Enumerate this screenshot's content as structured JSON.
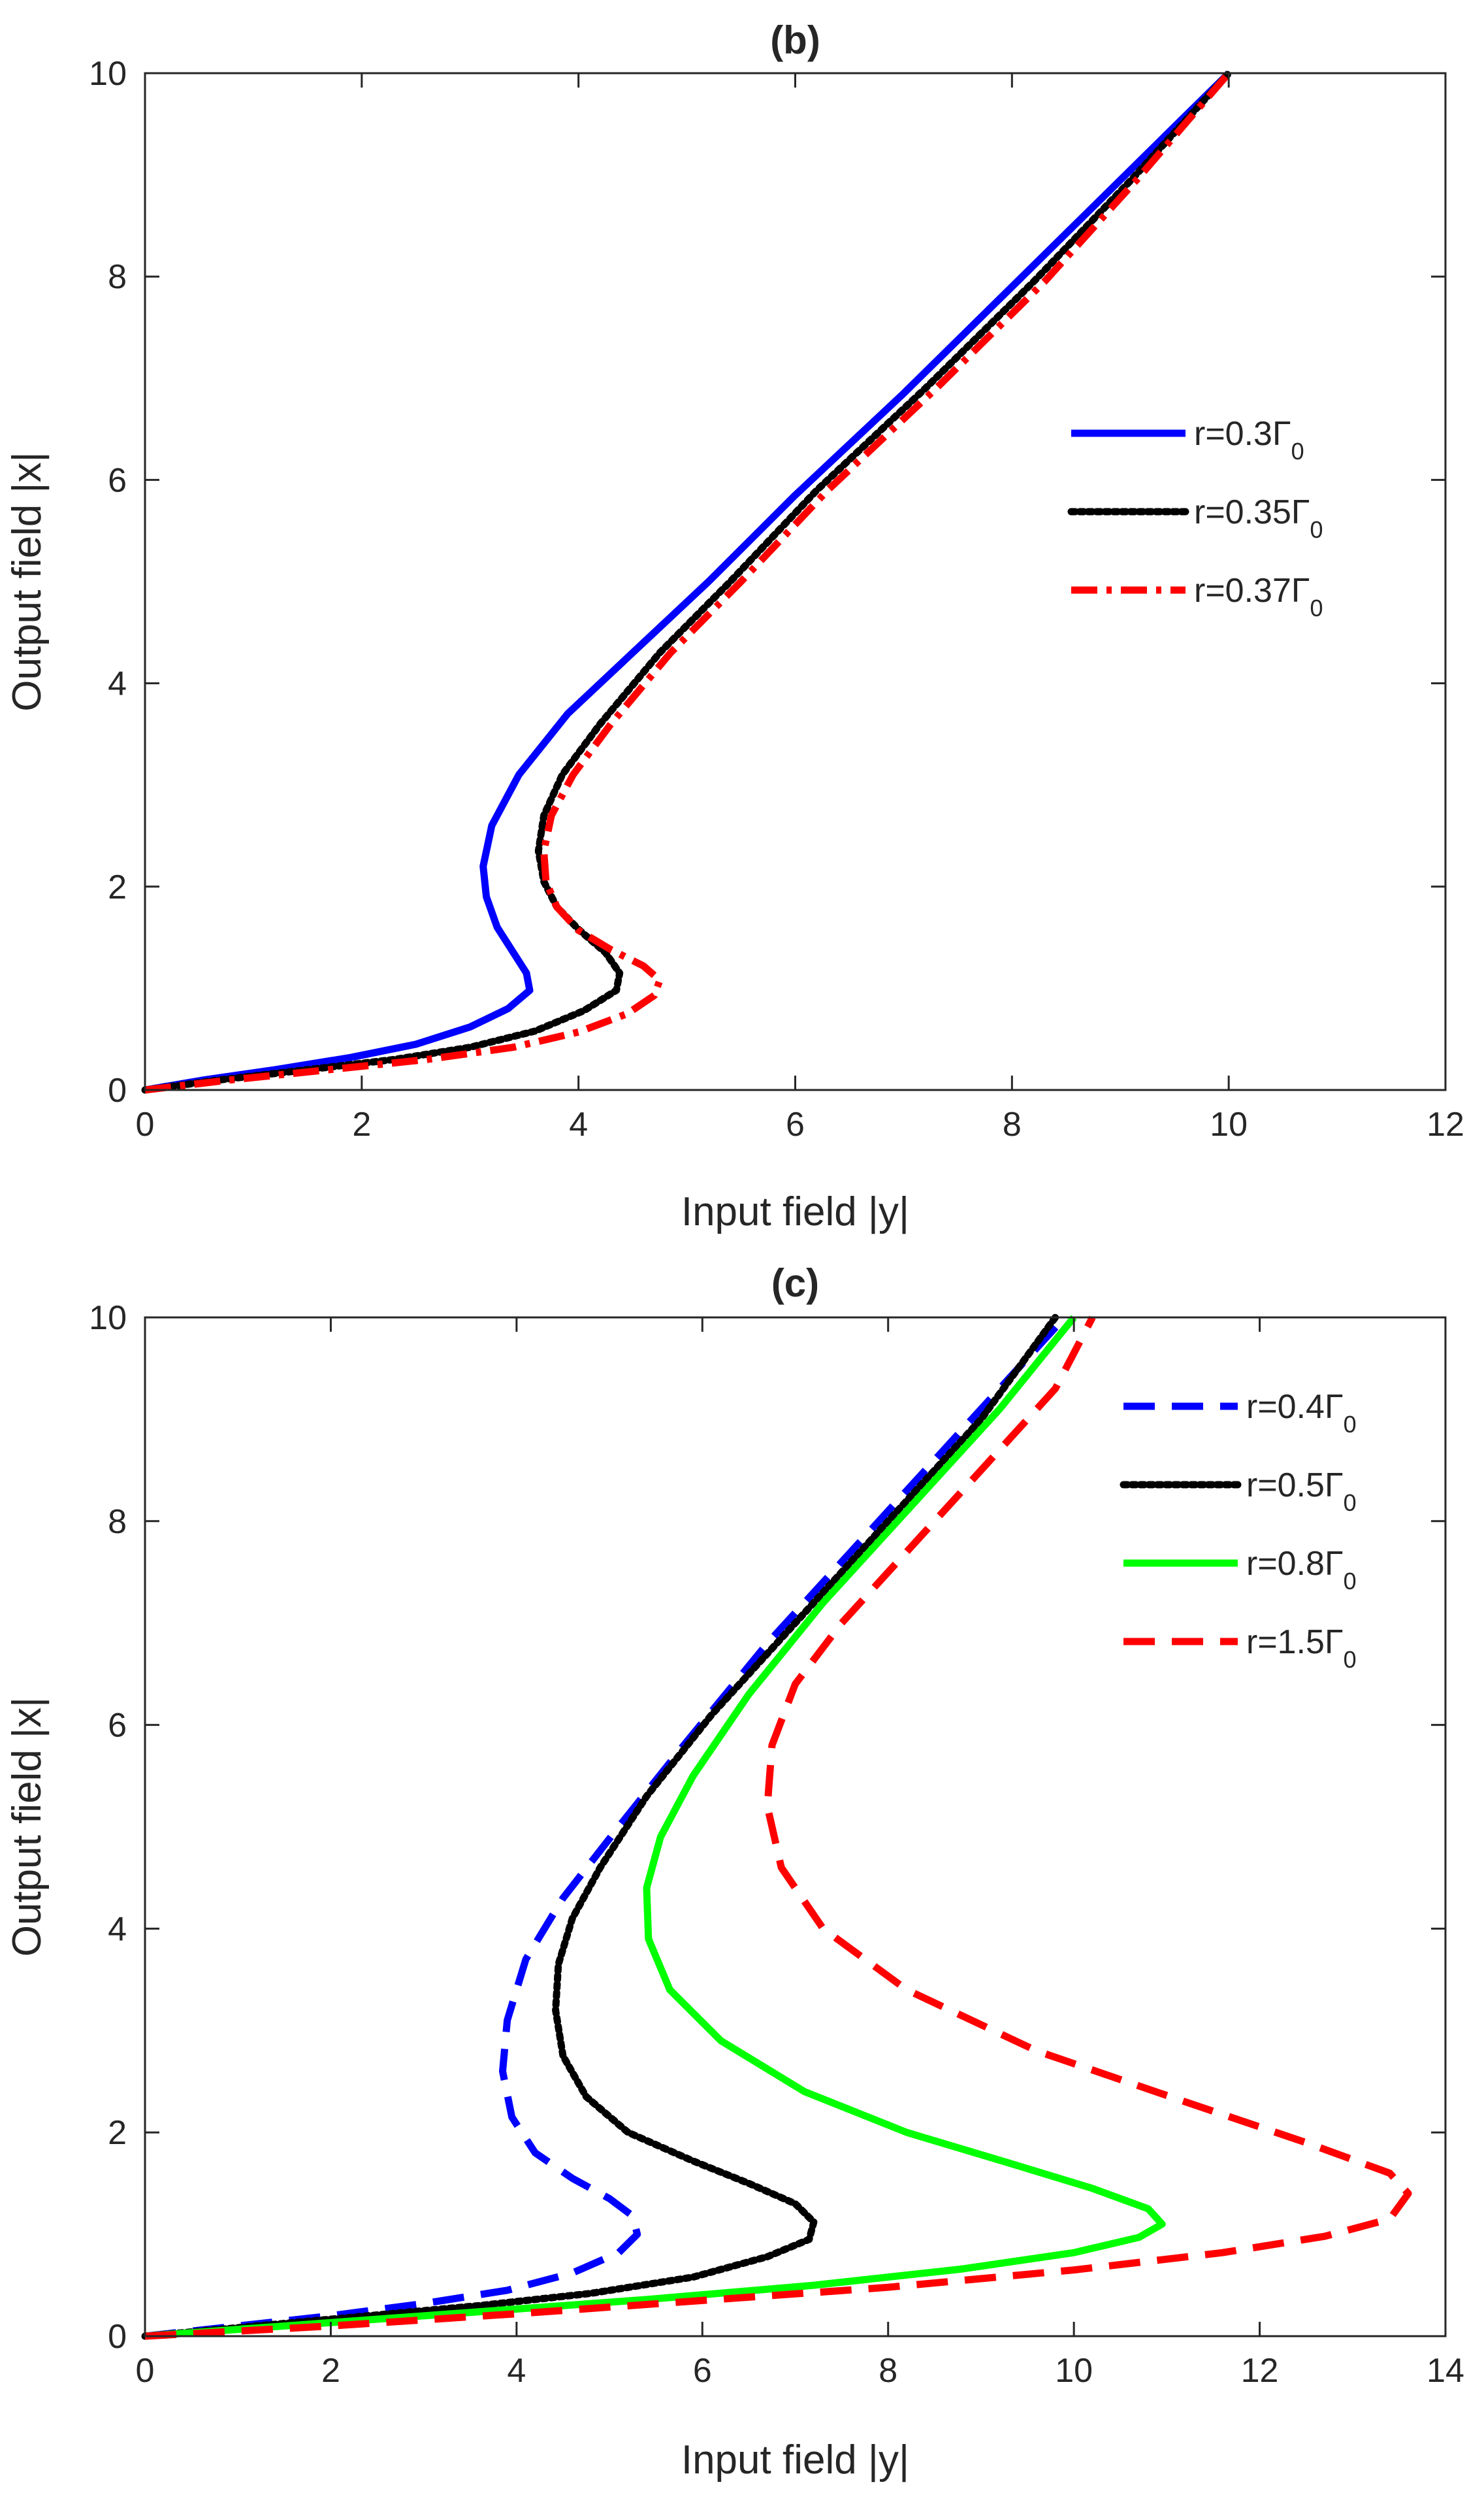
{
  "chart_data": [
    {
      "type": "line",
      "title": "(b)",
      "xlabel": "Input field |y|",
      "ylabel": "Output field |x|",
      "xlim": [
        0,
        12
      ],
      "ylim": [
        0,
        10
      ],
      "xticks": [
        0,
        2,
        4,
        6,
        8,
        10,
        12
      ],
      "yticks": [
        0,
        2,
        4,
        6,
        8,
        10
      ],
      "legend_position": "right",
      "series": [
        {
          "name": "r=0.3Γ0",
          "label_main": "r=0.3Γ",
          "label_sub": "0",
          "color": "#0000ff",
          "style": "solid",
          "x": [
            0,
            0.55,
            1.2,
            1.9,
            2.5,
            3.0,
            3.35,
            3.55,
            3.52,
            3.4,
            3.25,
            3.15,
            3.12,
            3.2,
            3.45,
            3.9,
            4.5,
            5.2,
            6.0,
            7.0,
            8.0,
            9.0,
            10.0
          ],
          "y": [
            0,
            0.1,
            0.2,
            0.32,
            0.45,
            0.62,
            0.8,
            0.98,
            1.15,
            1.35,
            1.6,
            1.9,
            2.2,
            2.6,
            3.1,
            3.7,
            4.3,
            5.0,
            5.85,
            6.85,
            7.9,
            8.95,
            10.0
          ]
        },
        {
          "name": "r=0.35Γ0",
          "label_main": "r=0.35Γ",
          "label_sub": "0",
          "color": "#000000",
          "style": "dotted",
          "x": [
            0,
            0.7,
            1.5,
            2.3,
            3.0,
            3.6,
            4.05,
            4.35,
            4.38,
            4.25,
            4.0,
            3.8,
            3.68,
            3.63,
            3.68,
            3.85,
            4.2,
            4.75,
            5.4,
            6.2,
            7.2,
            8.2,
            9.1,
            10.0
          ],
          "y": [
            0,
            0.1,
            0.2,
            0.3,
            0.42,
            0.58,
            0.78,
            0.98,
            1.15,
            1.35,
            1.58,
            1.8,
            2.05,
            2.35,
            2.7,
            3.1,
            3.6,
            4.3,
            5.0,
            5.9,
            6.9,
            7.95,
            8.95,
            10.0
          ]
        },
        {
          "name": "r=0.37Γ0",
          "label_main": "r=0.37Γ",
          "label_sub": "0",
          "color": "#ff0000",
          "style": "dashdot",
          "x": [
            0,
            0.8,
            1.7,
            2.6,
            3.4,
            4.0,
            4.45,
            4.7,
            4.75,
            4.6,
            4.3,
            4.0,
            3.8,
            3.7,
            3.68,
            3.75,
            3.95,
            4.3,
            4.85,
            5.5,
            6.3,
            7.3,
            8.3,
            9.15,
            10.0
          ],
          "y": [
            0,
            0.1,
            0.2,
            0.3,
            0.42,
            0.57,
            0.75,
            0.93,
            1.08,
            1.22,
            1.38,
            1.57,
            1.8,
            2.05,
            2.35,
            2.7,
            3.1,
            3.6,
            4.3,
            5.0,
            5.9,
            6.9,
            7.95,
            8.95,
            10.0
          ]
        }
      ]
    },
    {
      "type": "line",
      "title": "(c)",
      "xlabel": "Input field |y|",
      "ylabel": "Output field |x|",
      "xlim": [
        0,
        14
      ],
      "ylim": [
        0,
        10
      ],
      "xticks": [
        0,
        2,
        4,
        6,
        8,
        10,
        12,
        14
      ],
      "yticks": [
        0,
        2,
        4,
        6,
        8,
        10
      ],
      "legend_position": "top-right",
      "series": [
        {
          "name": "r=0.4Γ0",
          "label_main": "r=0.4Γ",
          "label_sub": "0",
          "color": "#0000ff",
          "style": "dashed",
          "x": [
            0,
            1.0,
            2.0,
            3.0,
            3.9,
            4.6,
            5.1,
            5.3,
            5.25,
            5.0,
            4.6,
            4.2,
            3.95,
            3.85,
            3.9,
            4.1,
            4.5,
            5.1,
            5.8,
            6.7,
            7.7,
            8.7,
            9.5,
            9.9
          ],
          "y": [
            0,
            0.1,
            0.2,
            0.32,
            0.45,
            0.62,
            0.82,
            1.0,
            1.18,
            1.35,
            1.55,
            1.8,
            2.15,
            2.6,
            3.1,
            3.7,
            4.3,
            5.0,
            5.8,
            6.8,
            7.8,
            8.8,
            9.6,
            10.0
          ]
        },
        {
          "name": "r=0.5Γ0",
          "label_main": "r=0.5Γ",
          "label_sub": "0",
          "color": "#000000",
          "style": "dotted",
          "x": [
            0,
            1.2,
            2.4,
            3.6,
            4.8,
            5.9,
            6.7,
            7.15,
            7.2,
            7.0,
            6.5,
            5.9,
            5.2,
            4.75,
            4.5,
            4.42,
            4.45,
            4.6,
            4.9,
            5.4,
            6.1,
            7.0,
            8.0,
            9.0,
            9.8
          ],
          "y": [
            0,
            0.1,
            0.2,
            0.3,
            0.42,
            0.58,
            0.78,
            0.95,
            1.12,
            1.3,
            1.5,
            1.72,
            2.0,
            2.35,
            2.75,
            3.2,
            3.65,
            4.1,
            4.6,
            5.3,
            6.1,
            7.0,
            8.0,
            9.0,
            10.0
          ]
        },
        {
          "name": "r=0.8Γ0",
          "label_main": "r=0.8Γ",
          "label_sub": "0",
          "color": "#00ff00",
          "style": "solid",
          "x": [
            0,
            1.8,
            3.6,
            5.4,
            7.2,
            8.8,
            10.0,
            10.7,
            10.95,
            10.8,
            10.2,
            9.3,
            8.2,
            7.1,
            6.2,
            5.65,
            5.42,
            5.4,
            5.55,
            5.9,
            6.5,
            7.3,
            8.2,
            9.2,
            10.0
          ],
          "y": [
            0,
            0.12,
            0.24,
            0.36,
            0.5,
            0.66,
            0.82,
            0.97,
            1.1,
            1.25,
            1.45,
            1.7,
            2.0,
            2.4,
            2.9,
            3.4,
            3.9,
            4.4,
            4.9,
            5.5,
            6.3,
            7.2,
            8.1,
            9.1,
            10.0
          ]
        },
        {
          "name": "r=1.5Γ0",
          "label_main": "r=1.5Γ",
          "label_sub": "0",
          "color": "#ff0000",
          "style": "dashed",
          "x": [
            0,
            2.0,
            4.0,
            6.0,
            8.0,
            10.0,
            11.6,
            12.7,
            13.4,
            13.6,
            13.4,
            12.5,
            11.2,
            9.6,
            8.2,
            7.3,
            6.85,
            6.7,
            6.75,
            7.0,
            7.5,
            8.2,
            9.0,
            9.8,
            10.2
          ],
          "y": [
            0,
            0.1,
            0.22,
            0.35,
            0.48,
            0.65,
            0.82,
            0.98,
            1.15,
            1.4,
            1.6,
            1.9,
            2.3,
            2.8,
            3.4,
            4.0,
            4.6,
            5.2,
            5.8,
            6.4,
            7.0,
            7.7,
            8.5,
            9.3,
            10.0
          ]
        }
      ]
    }
  ]
}
